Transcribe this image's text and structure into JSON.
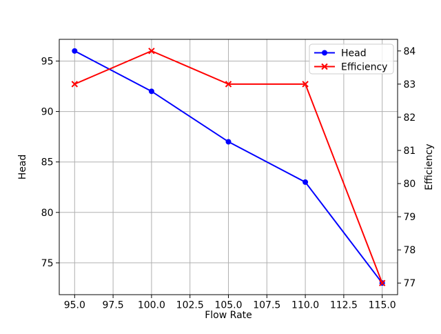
{
  "figure": {
    "background": "#ffffff"
  },
  "chart_data": {
    "type": "line",
    "title": "",
    "x": [
      95,
      100,
      105,
      110,
      115
    ],
    "series": [
      {
        "name": "Head",
        "axis": "left",
        "color": "#0000ff",
        "marker": "circle",
        "values": [
          96,
          92,
          87,
          83,
          73
        ]
      },
      {
        "name": "Efficiency",
        "axis": "right",
        "color": "#ff0000",
        "marker": "x",
        "values": [
          83,
          84,
          83,
          83,
          77
        ]
      }
    ],
    "xlabel": "Flow Rate",
    "ylabel_left": "Head",
    "ylabel_right": "Efficiency",
    "ylabel_left_color": "#0000ff",
    "ylabel_right_color": "#ff0000",
    "xlim": [
      94,
      116
    ],
    "ylim_left": [
      71.85,
      97.15
    ],
    "ylim_right": [
      76.65,
      84.35
    ],
    "xticks": [
      95,
      97.5,
      100,
      102.5,
      105,
      107.5,
      110,
      112.5,
      115
    ],
    "xtick_labels": [
      "95.0",
      "97.5",
      "100.0",
      "102.5",
      "105.0",
      "107.5",
      "110.0",
      "112.5",
      "115.0"
    ],
    "yticks_left": [
      75,
      80,
      85,
      90,
      95
    ],
    "ytick_labels_left": [
      "75",
      "80",
      "85",
      "90",
      "95"
    ],
    "yticks_right": [
      77,
      78,
      79,
      80,
      81,
      82,
      83,
      84
    ],
    "ytick_labels_right": [
      "77",
      "78",
      "79",
      "80",
      "81",
      "82",
      "83",
      "84"
    ],
    "grid": true,
    "grid_color": "#b0b0b0",
    "axis_color": "#000000",
    "tick_label_color": "#000000",
    "legend": {
      "position": "top-right",
      "frame_color": "#cccccc",
      "entries": [
        "Head",
        "Efficiency"
      ]
    }
  }
}
